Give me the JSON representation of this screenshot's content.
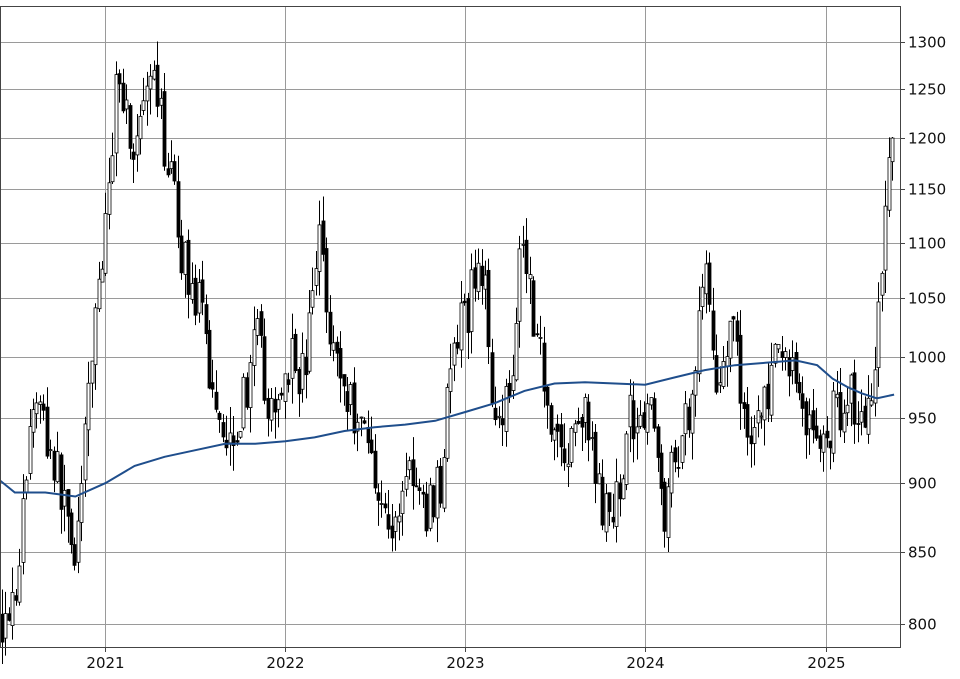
{
  "chart_data": {
    "type": "candlestick",
    "title": "",
    "xlabel": "",
    "ylabel": "",
    "x_range": [
      "2020-06-01",
      "2025-06-01"
    ],
    "ylim": [
      785,
      1340
    ],
    "y_scale": "log",
    "grid": true,
    "legend": "none",
    "y_ticks": [
      800,
      850,
      900,
      950,
      1000,
      1050,
      1100,
      1150,
      1200,
      1250,
      1300
    ],
    "x_ticks": [
      {
        "date": "2021-01-01",
        "label": "2021"
      },
      {
        "date": "2022-01-01",
        "label": "2022"
      },
      {
        "date": "2023-01-01",
        "label": "2023"
      },
      {
        "date": "2024-01-01",
        "label": "2024"
      },
      {
        "date": "2025-01-01",
        "label": "2025"
      }
    ],
    "colors": {
      "up": "#ffffff",
      "down": "#000000",
      "wick": "#000000",
      "moving_average": "#1f4e8c",
      "grid": "#9a9a9a"
    },
    "price_path": [
      [
        "2020-06-05",
        805
      ],
      [
        "2020-07-05",
        830
      ],
      [
        "2020-08-10",
        975
      ],
      [
        "2020-09-05",
        935
      ],
      [
        "2020-10-05",
        890
      ],
      [
        "2020-11-01",
        850
      ],
      [
        "2020-11-20",
        925
      ],
      [
        "2020-12-10",
        1040
      ],
      [
        "2021-01-05",
        1120
      ],
      [
        "2021-01-25",
        1285
      ],
      [
        "2021-02-25",
        1185
      ],
      [
        "2021-03-20",
        1225
      ],
      [
        "2021-04-10",
        1250
      ],
      [
        "2021-05-10",
        1170
      ],
      [
        "2021-06-05",
        1090
      ],
      [
        "2021-07-10",
        1040
      ],
      [
        "2021-08-05",
        975
      ],
      [
        "2021-09-05",
        935
      ],
      [
        "2021-10-05",
        960
      ],
      [
        "2021-11-05",
        1015
      ],
      [
        "2021-12-05",
        940
      ],
      [
        "2022-01-05",
        1000
      ],
      [
        "2022-02-10",
        985
      ],
      [
        "2022-03-10",
        1115
      ],
      [
        "2022-04-05",
        1015
      ],
      [
        "2022-05-05",
        965
      ],
      [
        "2022-06-05",
        950
      ],
      [
        "2022-07-05",
        905
      ],
      [
        "2022-08-05",
        855
      ],
      [
        "2022-09-05",
        920
      ],
      [
        "2022-10-05",
        875
      ],
      [
        "2022-11-10",
        900
      ],
      [
        "2022-12-05",
        1000
      ],
      [
        "2023-01-05",
        1040
      ],
      [
        "2023-02-01",
        1090
      ],
      [
        "2023-03-01",
        960
      ],
      [
        "2023-04-01",
        965
      ],
      [
        "2023-04-25",
        1120
      ],
      [
        "2023-05-25",
        1020
      ],
      [
        "2023-06-25",
        950
      ],
      [
        "2023-07-25",
        915
      ],
      [
        "2023-08-25",
        960
      ],
      [
        "2023-09-25",
        900
      ],
      [
        "2023-10-25",
        860
      ],
      [
        "2023-11-25",
        945
      ],
      [
        "2024-01-05",
        965
      ],
      [
        "2024-02-10",
        880
      ],
      [
        "2024-03-10",
        935
      ],
      [
        "2024-04-10",
        975
      ],
      [
        "2024-04-25",
        1085
      ],
      [
        "2024-05-25",
        985
      ],
      [
        "2024-06-25",
        1020
      ],
      [
        "2024-07-25",
        940
      ],
      [
        "2024-08-20",
        950
      ],
      [
        "2024-09-20",
        990
      ],
      [
        "2024-10-20",
        1000
      ],
      [
        "2024-11-20",
        955
      ],
      [
        "2024-12-20",
        925
      ],
      [
        "2025-01-20",
        955
      ],
      [
        "2025-02-20",
        975
      ],
      [
        "2025-03-20",
        935
      ],
      [
        "2025-04-10",
        1000
      ],
      [
        "2025-04-25",
        1095
      ],
      [
        "2025-05-10",
        1180
      ],
      [
        "2025-05-20",
        1205
      ]
    ],
    "moving_average": [
      [
        "2020-06-01",
        902
      ],
      [
        "2020-07-01",
        893
      ],
      [
        "2020-09-01",
        893
      ],
      [
        "2020-11-01",
        890
      ],
      [
        "2021-01-01",
        900
      ],
      [
        "2021-03-01",
        913
      ],
      [
        "2021-05-01",
        920
      ],
      [
        "2021-07-01",
        925
      ],
      [
        "2021-09-01",
        930
      ],
      [
        "2021-11-01",
        930
      ],
      [
        "2022-01-01",
        932
      ],
      [
        "2022-03-01",
        935
      ],
      [
        "2022-05-01",
        940
      ],
      [
        "2022-07-01",
        943
      ],
      [
        "2022-09-01",
        945
      ],
      [
        "2022-11-01",
        948
      ],
      [
        "2023-01-01",
        955
      ],
      [
        "2023-03-01",
        962
      ],
      [
        "2023-05-01",
        972
      ],
      [
        "2023-07-01",
        978
      ],
      [
        "2023-09-01",
        979
      ],
      [
        "2023-11-01",
        978
      ],
      [
        "2024-01-01",
        977
      ],
      [
        "2024-03-01",
        983
      ],
      [
        "2024-05-01",
        989
      ],
      [
        "2024-07-01",
        993
      ],
      [
        "2024-09-01",
        995
      ],
      [
        "2024-11-01",
        997
      ],
      [
        "2024-12-15",
        993
      ],
      [
        "2025-01-15",
        982
      ],
      [
        "2025-02-15",
        975
      ],
      [
        "2025-03-15",
        970
      ],
      [
        "2025-04-15",
        966
      ],
      [
        "2025-05-20",
        969
      ]
    ]
  }
}
